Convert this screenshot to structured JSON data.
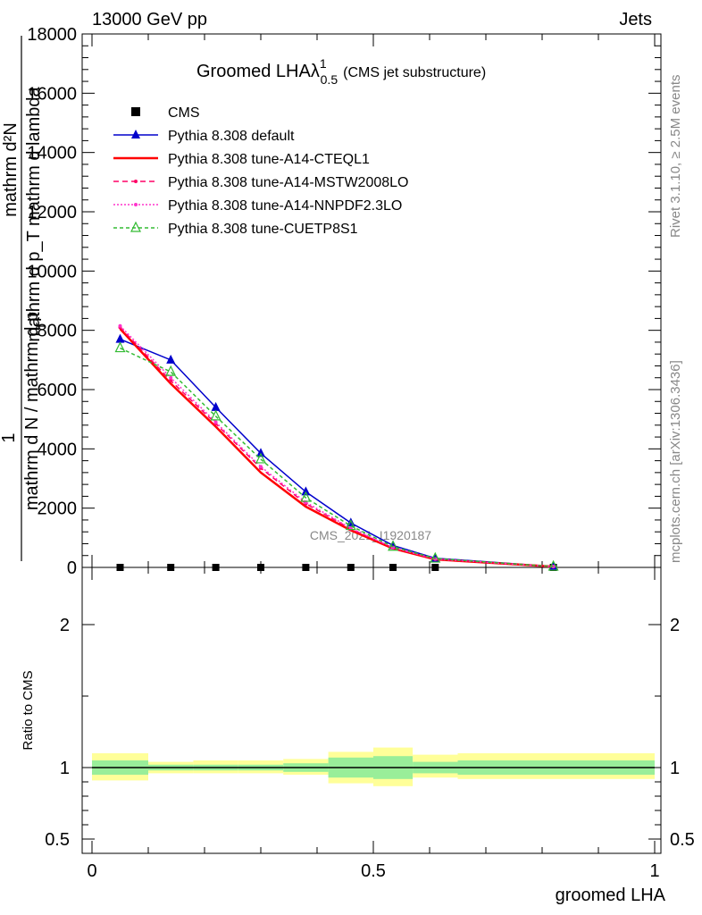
{
  "header": {
    "left": "13000 GeV pp",
    "right": "Jets"
  },
  "side_texts": {
    "rivet": "Rivet 3.1.10, ≥ 2.5M events",
    "mcplots": "mcplots.cern.ch [arXiv:1306.3436]"
  },
  "watermark": "CMS_2021_I1920187",
  "chart_data": {
    "type": "line",
    "title": "Groomed LHAλ",
    "title_sup": "1",
    "title_sub": "0.5",
    "title_note": "(CMS jet substructure)",
    "xlabel": "groomed LHA",
    "ylabel_parts": {
      "one": "1",
      "top": "mathrm d²N",
      "bottom": "mathrm d N / mathrm d p",
      "sub": "T",
      "extra": "mathrm d p_T mathrm d lambda"
    },
    "ratio_ylabel": "Ratio to CMS",
    "xlim": [
      0,
      1
    ],
    "ylim": [
      0,
      18000
    ],
    "ratio_ylim": [
      0.4,
      2.4
    ],
    "x_ticks": [
      "0",
      "0.5",
      "1"
    ],
    "y_ticks": [
      "0",
      "2000",
      "4000",
      "6000",
      "8000",
      "10000",
      "12000",
      "14000",
      "16000",
      "18000"
    ],
    "ratio_ticks": [
      "0.5",
      "1",
      "2"
    ],
    "bin_edges": [
      0,
      0.1,
      0.18,
      0.26,
      0.34,
      0.42,
      0.5,
      0.57,
      0.65,
      1.0
    ],
    "x": [
      0.05,
      0.14,
      0.22,
      0.3,
      0.38,
      0.46,
      0.535,
      0.61,
      0.82
    ],
    "cms": [
      0,
      0,
      0,
      0,
      0,
      0,
      0,
      0,
      0
    ],
    "ratio_band_green": [
      [
        0.95,
        1.05
      ],
      [
        0.98,
        1.02
      ],
      [
        0.98,
        1.02
      ],
      [
        0.98,
        1.02
      ],
      [
        0.97,
        1.03
      ],
      [
        0.93,
        1.07
      ],
      [
        0.92,
        1.08
      ],
      [
        0.96,
        1.04
      ],
      [
        0.95,
        1.05
      ]
    ],
    "ratio_band_yellow": [
      [
        0.91,
        1.1
      ],
      [
        0.96,
        1.04
      ],
      [
        0.96,
        1.05
      ],
      [
        0.96,
        1.05
      ],
      [
        0.95,
        1.06
      ],
      [
        0.89,
        1.11
      ],
      [
        0.87,
        1.14
      ],
      [
        0.93,
        1.09
      ],
      [
        0.92,
        1.1
      ]
    ],
    "series": [
      {
        "name": "CMS",
        "marker": "square",
        "color": "#000000",
        "values": [
          0,
          0,
          0,
          0,
          0,
          0,
          0,
          0,
          0
        ]
      },
      {
        "name": "Pythia 8.308 default",
        "color": "#0000cc",
        "dash": "none",
        "marker": "triangle-filled",
        "values": [
          7700,
          7000,
          5400,
          3850,
          2550,
          1500,
          740,
          310,
          30
        ]
      },
      {
        "name": "Pythia 8.308 tune-A14-CTEQL1",
        "color": "#ff0000",
        "dash": "none",
        "marker": "none",
        "width": 2.5,
        "values": [
          8050,
          6200,
          4750,
          3200,
          2050,
          1250,
          640,
          270,
          25
        ]
      },
      {
        "name": "Pythia 8.308 tune-A14-MSTW2008LO",
        "color": "#ff0066",
        "dash": "6,4",
        "marker": "small",
        "values": [
          8100,
          6300,
          4850,
          3350,
          2150,
          1300,
          660,
          280,
          25
        ]
      },
      {
        "name": "Pythia 8.308 tune-A14-NNPDF2.3LO",
        "color": "#ff33cc",
        "dash": "2,2",
        "marker": "small",
        "values": [
          8150,
          6400,
          4900,
          3400,
          2200,
          1320,
          670,
          285,
          25
        ]
      },
      {
        "name": "Pythia 8.308 tune-CUETP8S1",
        "color": "#33bb33",
        "dash": "4,3",
        "marker": "triangle-open",
        "values": [
          7400,
          6600,
          5100,
          3650,
          2350,
          1400,
          700,
          300,
          28
        ]
      }
    ]
  }
}
